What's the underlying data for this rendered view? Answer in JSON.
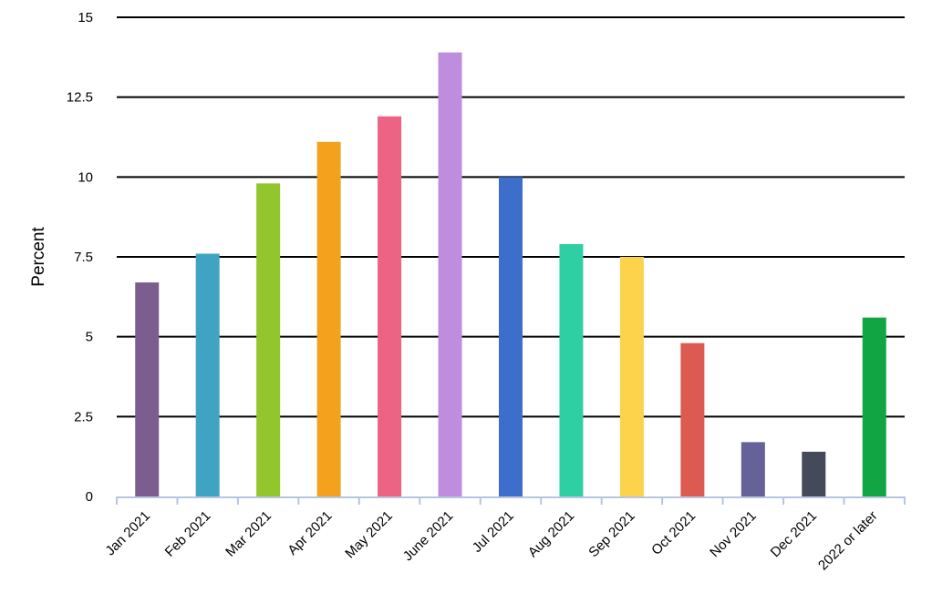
{
  "chart_data": {
    "type": "bar",
    "title": "",
    "xlabel": "",
    "ylabel": "Percent",
    "ylim": [
      0,
      15
    ],
    "yticks": [
      0,
      2.5,
      5,
      7.5,
      10,
      12.5,
      15
    ],
    "ytick_labels": [
      "0",
      "2.5",
      "5",
      "7.5",
      "10",
      "12.5",
      "15"
    ],
    "grid": true,
    "legend": "none",
    "categories": [
      "Jan 2021",
      "Feb 2021",
      "Mar 2021",
      "Apr 2021",
      "May 2021",
      "June 2021",
      "Jul 2021",
      "Aug 2021",
      "Sep 2021",
      "Oct 2021",
      "Nov 2021",
      "Dec 2021",
      "2022 or later"
    ],
    "values": [
      6.7,
      7.6,
      9.8,
      11.1,
      11.9,
      13.9,
      10.0,
      7.9,
      7.5,
      4.8,
      1.7,
      1.4,
      5.6
    ],
    "colors": [
      "#7b5e8f",
      "#3fa4c4",
      "#93c52c",
      "#f4a21e",
      "#ec6383",
      "#bf8ddd",
      "#3d6ecb",
      "#2fcfa4",
      "#fcd34a",
      "#dd5a52",
      "#666199",
      "#454a5a",
      "#11a544"
    ]
  }
}
